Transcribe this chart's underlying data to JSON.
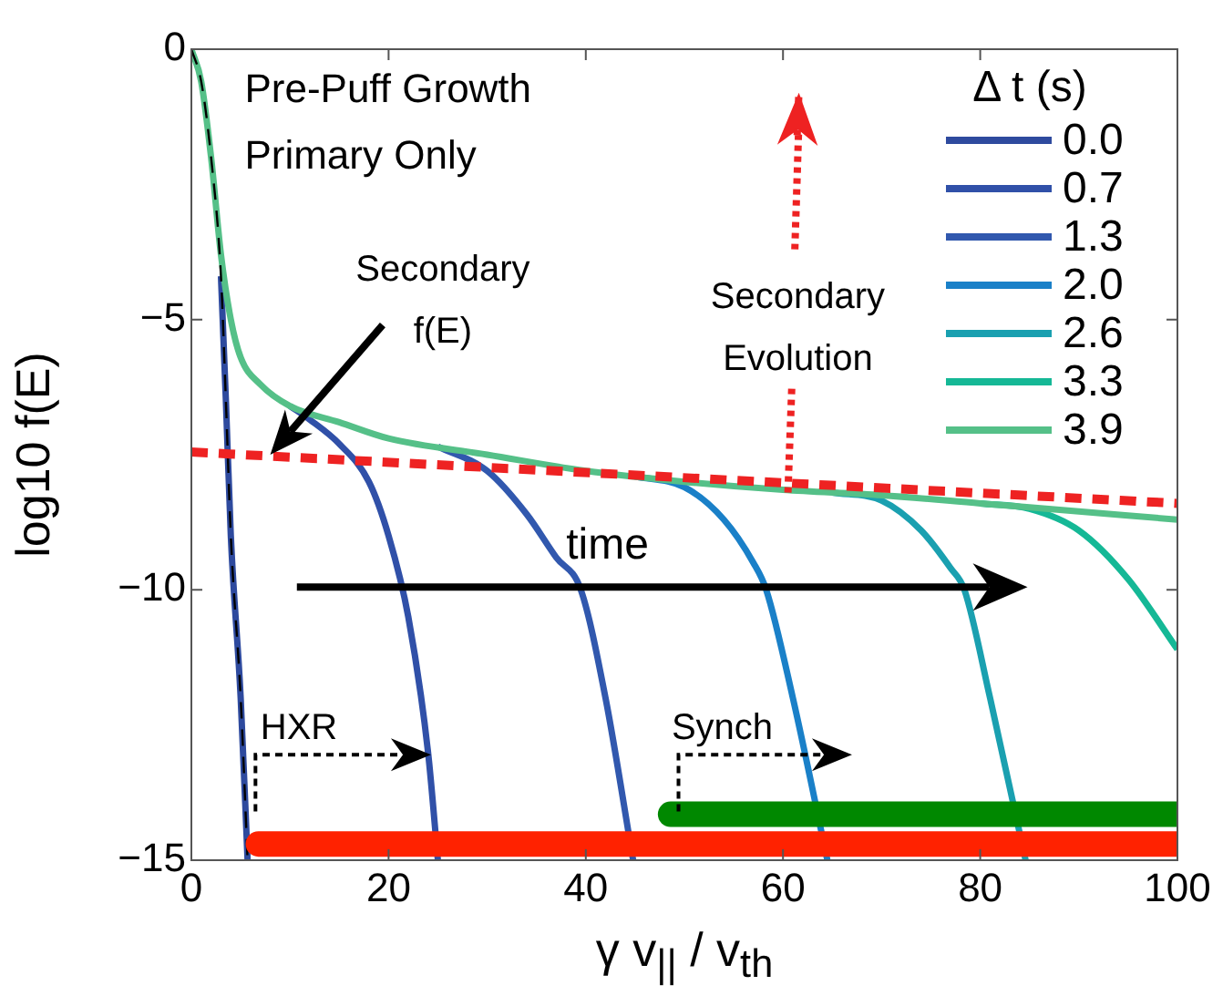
{
  "chart_data": {
    "type": "line",
    "xlabel": "γ v$_{||}$ / v$_{th}$",
    "ylabel": "log10 f(E)",
    "legend_title": "Δ t (s)",
    "xlim": [
      0,
      100
    ],
    "ylim": [
      -15,
      0
    ],
    "xticks": [
      0,
      20,
      40,
      60,
      80,
      100
    ],
    "yticks": [
      -15,
      -10,
      -5,
      0
    ],
    "grid": false,
    "legend": "top right",
    "annotations": [
      "Pre-Puff Growth",
      "Primary Only",
      "Secondary f(E)",
      {
        "text": "Secondary Evolution",
        "x": 60.5,
        "y": -8.2
      },
      "time",
      "HXR",
      "Synch"
    ],
    "series": [
      {
        "name": "0.0",
        "color": "#2e4a9e",
        "x": [
          3,
          3.5,
          4,
          5,
          5.7
        ],
        "values": [
          -4.2,
          -6.5,
          -9,
          -12,
          -15
        ]
      },
      {
        "name": "0.7",
        "color": "#3050a8",
        "x": [
          10,
          12,
          15,
          18,
          20,
          22,
          24,
          25
        ],
        "values": [
          -6.6,
          -6.85,
          -7.3,
          -8.0,
          -9,
          -10.5,
          -13,
          -15
        ]
      },
      {
        "name": "1.3",
        "color": "#3158ae",
        "x": [
          25,
          30,
          34,
          37,
          39.5,
          42,
          44.8
        ],
        "values": [
          -7.35,
          -7.8,
          -8.6,
          -9.4,
          -10,
          -12,
          -15
        ]
      },
      {
        "name": "2.0",
        "color": "#1a80c8",
        "x": [
          45,
          50,
          54,
          57,
          58.3,
          61,
          64.5
        ],
        "values": [
          -7.9,
          -8.1,
          -8.7,
          -9.5,
          -10,
          -12,
          -15
        ]
      },
      {
        "name": "2.6",
        "color": "#1aa0b0",
        "x": [
          65,
          70,
          74,
          77,
          78.4,
          81,
          84.6
        ],
        "values": [
          -8.2,
          -8.35,
          -8.9,
          -9.6,
          -10,
          -12,
          -15
        ]
      },
      {
        "name": "3.3",
        "color": "#15b896",
        "x": [
          80,
          85,
          90,
          95,
          100
        ],
        "values": [
          -8.4,
          -8.5,
          -8.9,
          -9.8,
          -11.1
        ]
      },
      {
        "name": "3.9",
        "color": "#55c088",
        "x": [
          0,
          1,
          2,
          3,
          4,
          5,
          7,
          10,
          15,
          20,
          30,
          40,
          50,
          60,
          70,
          80,
          90,
          100
        ],
        "values": [
          0,
          -0.6,
          -2,
          -3.8,
          -5,
          -5.7,
          -6.2,
          -6.6,
          -6.9,
          -7.2,
          -7.5,
          -7.8,
          -8.0,
          -8.15,
          -8.25,
          -8.4,
          -8.55,
          -8.7
        ]
      },
      {
        "color": "#000000",
        "line_style": "dashed",
        "x": [
          0,
          1,
          2,
          3,
          3.5,
          4,
          5,
          5.7
        ],
        "values": [
          0,
          -0.6,
          -2,
          -4.2,
          -6.5,
          -9,
          -12,
          -15
        ]
      },
      {
        "color": "#ee2222",
        "line_style": "dashed",
        "x": [
          0,
          100
        ],
        "values": [
          -7.45,
          -8.4
        ]
      },
      {
        "color": "#ff2200",
        "x": [
          6.8,
          100
        ],
        "values": [
          -14.7,
          -14.7
        ]
      },
      {
        "color": "#008800",
        "x": [
          48.6,
          100
        ],
        "values": [
          -14.15,
          -14.15
        ]
      }
    ]
  }
}
